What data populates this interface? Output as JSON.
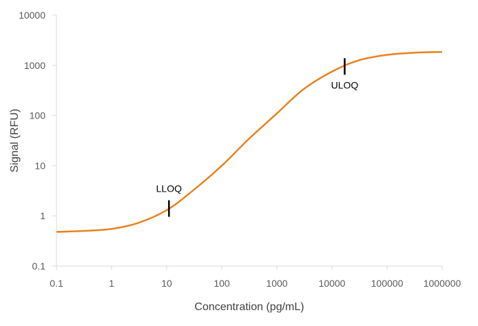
{
  "chart_data": {
    "type": "line",
    "title": "",
    "xlabel": "Concentration (pg/mL)",
    "ylabel": "Signal (RFU)",
    "x_scale": "log",
    "y_scale": "log",
    "xlim": [
      0.1,
      1000000
    ],
    "ylim": [
      0.1,
      10000
    ],
    "x_tick_labels": [
      "0.1",
      "1",
      "10",
      "100",
      "1000",
      "10000",
      "100000",
      "1000000"
    ],
    "y_tick_labels": [
      "0.1",
      "1",
      "10",
      "100",
      "1000",
      "10000"
    ],
    "grid": false,
    "legend": "none",
    "series": [
      {
        "color": "#e8821e",
        "x": [
          0.1,
          0.3,
          1,
          3,
          10,
          30,
          100,
          300,
          1000,
          3000,
          10000,
          30000,
          100000,
          300000,
          1000000
        ],
        "values": [
          0.48,
          0.5,
          0.55,
          0.72,
          1.3,
          3.2,
          10,
          33,
          110,
          330,
          750,
          1250,
          1620,
          1780,
          1850
        ]
      }
    ],
    "annotations": [
      {
        "label": "LLOQ",
        "x": 11,
        "y": 1.4
      },
      {
        "label": "ULOQ",
        "x": 17000,
        "y": 950
      }
    ]
  }
}
